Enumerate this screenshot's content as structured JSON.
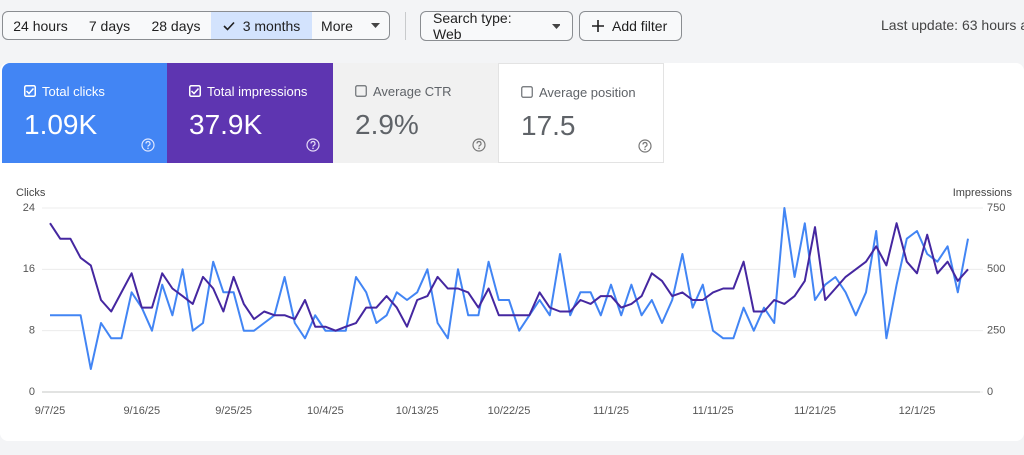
{
  "toolbar": {
    "time_ranges": [
      "24 hours",
      "7 days",
      "28 days",
      "3 months"
    ],
    "more": "More",
    "search_type": "Search type: Web",
    "add_filter": "Add filter",
    "last_update": "Last update: 63 hours a"
  },
  "metrics": [
    {
      "label": "Total clicks",
      "value": "1.09K"
    },
    {
      "label": "Total impressions",
      "value": "37.9K"
    },
    {
      "label": "Average CTR",
      "value": "2.9%"
    },
    {
      "label": "Average position",
      "value": "17.5"
    }
  ],
  "chart_data": {
    "type": "line",
    "categories": [
      "9/7/25",
      null,
      null,
      null,
      null,
      null,
      null,
      null,
      null,
      "9/16/25",
      null,
      null,
      null,
      null,
      null,
      null,
      null,
      null,
      "9/25/25",
      null,
      null,
      null,
      null,
      null,
      null,
      null,
      null,
      "10/4/25",
      null,
      null,
      null,
      null,
      null,
      null,
      null,
      null,
      "10/13/25",
      null,
      null,
      null,
      null,
      null,
      null,
      null,
      null,
      "10/22/25",
      null,
      null,
      null,
      null,
      null,
      null,
      null,
      null,
      null,
      "11/1/25",
      null,
      null,
      null,
      null,
      null,
      null,
      null,
      null,
      null,
      "11/11/25",
      null,
      null,
      null,
      null,
      null,
      null,
      null,
      null,
      null,
      "11/21/25",
      null,
      null,
      null,
      null,
      null,
      null,
      null,
      null,
      null,
      "12/1/25",
      null,
      null,
      null,
      null,
      null
    ],
    "series": [
      {
        "name": "Clicks",
        "color": "#4285f4",
        "values": [
          10,
          10,
          10,
          10,
          3,
          9,
          7,
          7,
          13,
          11,
          8,
          14,
          10,
          16,
          8,
          9,
          17,
          13,
          13,
          8,
          8,
          9,
          10,
          15,
          9,
          7,
          10,
          8,
          8,
          8,
          15,
          13,
          9,
          10,
          13,
          12,
          13,
          16,
          9,
          7,
          16,
          10,
          10,
          17,
          12,
          12,
          8,
          10,
          12,
          10,
          18,
          10,
          13,
          13,
          10,
          14,
          10,
          14,
          10,
          12,
          9,
          12,
          18,
          11,
          14,
          8,
          7,
          7,
          11,
          8,
          11,
          9,
          24,
          15,
          22,
          12,
          14,
          15,
          13,
          10,
          13,
          21,
          7,
          14,
          20,
          21,
          18,
          17,
          19,
          13,
          20
        ]
      },
      {
        "name": "Impressions",
        "color": "#4527a0",
        "axis": "y2",
        "values": [
          688,
          625,
          625,
          547,
          516,
          375,
          328,
          406,
          484,
          344,
          344,
          484,
          422,
          391,
          359,
          469,
          422,
          328,
          469,
          359,
          297,
          328,
          313,
          313,
          297,
          375,
          266,
          266,
          250,
          266,
          281,
          344,
          344,
          391,
          344,
          266,
          375,
          391,
          469,
          422,
          422,
          406,
          344,
          422,
          313,
          313,
          313,
          313,
          406,
          344,
          328,
          328,
          375,
          359,
          391,
          391,
          344,
          359,
          391,
          484,
          453,
          391,
          406,
          375,
          375,
          406,
          422,
          422,
          531,
          328,
          328,
          375,
          359,
          391,
          453,
          672,
          375,
          422,
          469,
          500,
          531,
          594,
          516,
          688,
          531,
          484,
          641,
          484,
          531,
          453,
          500
        ]
      }
    ],
    "ylim": [
      0,
      24
    ],
    "yticks": [
      0,
      8,
      16,
      24
    ],
    "y2lim": [
      0,
      750
    ],
    "y2ticks": [
      0,
      250,
      500,
      750
    ],
    "grid": true
  }
}
